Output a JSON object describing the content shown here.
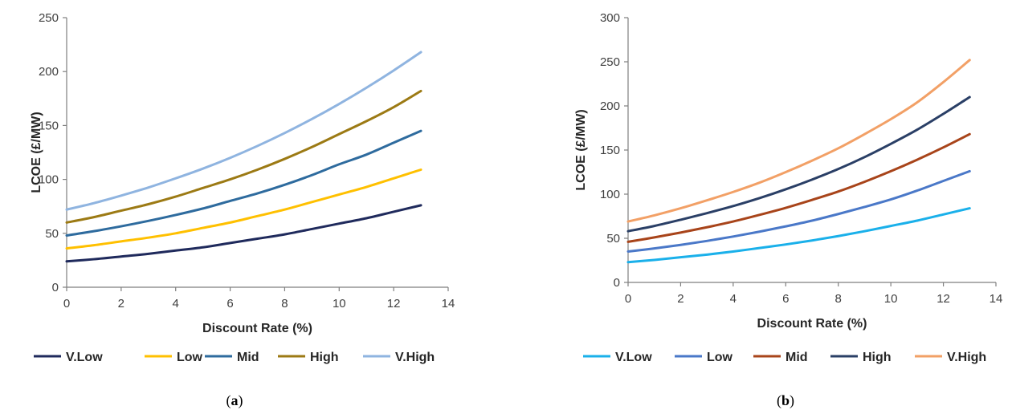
{
  "chart_data": [
    {
      "type": "line",
      "panel_label": "a",
      "xlabel": "Discount Rate (%)",
      "ylabel": "LCOE (£/MW)",
      "xlim": [
        0,
        14
      ],
      "ylim": [
        0,
        250
      ],
      "x_ticks": [
        "0",
        "2",
        "4",
        "6",
        "8",
        "10",
        "12",
        "14"
      ],
      "y_ticks": [
        "0",
        "50",
        "100",
        "150",
        "200",
        "250"
      ],
      "grid": false,
      "legend_position": "bottom",
      "x": [
        0,
        1,
        2,
        3,
        4,
        5,
        6,
        7,
        8,
        9,
        10,
        11,
        12,
        13
      ],
      "series": [
        {
          "name": "V.Low",
          "color": "#1f2a5c",
          "values": [
            24,
            26,
            28.5,
            31,
            34,
            37,
            41,
            45,
            49,
            54,
            59,
            64,
            70,
            76
          ]
        },
        {
          "name": "Low",
          "color": "#ffc000",
          "values": [
            36,
            39,
            42.5,
            46,
            50,
            55,
            60,
            66,
            72,
            79,
            86,
            93,
            101,
            109
          ]
        },
        {
          "name": "Mid",
          "color": "#2e6b9e",
          "values": [
            48,
            52,
            56.5,
            61.5,
            67,
            73,
            80,
            87,
            95,
            104,
            114,
            123,
            134,
            145
          ]
        },
        {
          "name": "High",
          "color": "#9c7a14",
          "values": [
            60,
            65,
            71,
            77,
            84,
            92,
            100,
            109,
            119,
            130,
            142,
            154,
            167,
            182
          ]
        },
        {
          "name": "V.High",
          "color": "#8fb4e0",
          "values": [
            72,
            78,
            85,
            92.5,
            101,
            110,
            120,
            131,
            143,
            156,
            170,
            185,
            201,
            218
          ]
        }
      ]
    },
    {
      "type": "line",
      "panel_label": "b",
      "xlabel": "Discount Rate (%)",
      "ylabel": "LCOE (£/MW)",
      "xlim": [
        0,
        14
      ],
      "ylim": [
        0,
        300
      ],
      "x_ticks": [
        "0",
        "2",
        "4",
        "6",
        "8",
        "10",
        "12",
        "14"
      ],
      "y_ticks": [
        "0",
        "50",
        "100",
        "150",
        "200",
        "250",
        "300"
      ],
      "grid": false,
      "legend_position": "bottom",
      "x": [
        0,
        1,
        2,
        3,
        4,
        5,
        6,
        7,
        8,
        9,
        10,
        11,
        12,
        13
      ],
      "series": [
        {
          "name": "V.Low",
          "color": "#1ab0ea",
          "values": [
            23,
            25.5,
            28.5,
            31.5,
            35,
            39,
            43,
            47.5,
            52.5,
            58,
            64,
            70,
            77,
            84
          ]
        },
        {
          "name": "Low",
          "color": "#4a78c8",
          "values": [
            35,
            38.5,
            42.5,
            47,
            52,
            57.5,
            63.5,
            70,
            77.5,
            85.5,
            94,
            104,
            115,
            126
          ]
        },
        {
          "name": "Mid",
          "color": "#a8441a",
          "values": [
            46,
            51,
            56.5,
            62.5,
            69,
            76.5,
            84.5,
            93.5,
            103,
            114,
            126,
            139,
            153,
            168
          ]
        },
        {
          "name": "High",
          "color": "#2a3f66",
          "values": [
            58,
            64,
            71,
            78.5,
            86.5,
            95.5,
            105.5,
            116.5,
            128.5,
            142,
            157,
            173,
            191,
            210
          ]
        },
        {
          "name": "V.High",
          "color": "#f2a066",
          "values": [
            69,
            76,
            84,
            93,
            102.5,
            113,
            125,
            138,
            152,
            168,
            185,
            204,
            227,
            252
          ]
        }
      ]
    }
  ]
}
